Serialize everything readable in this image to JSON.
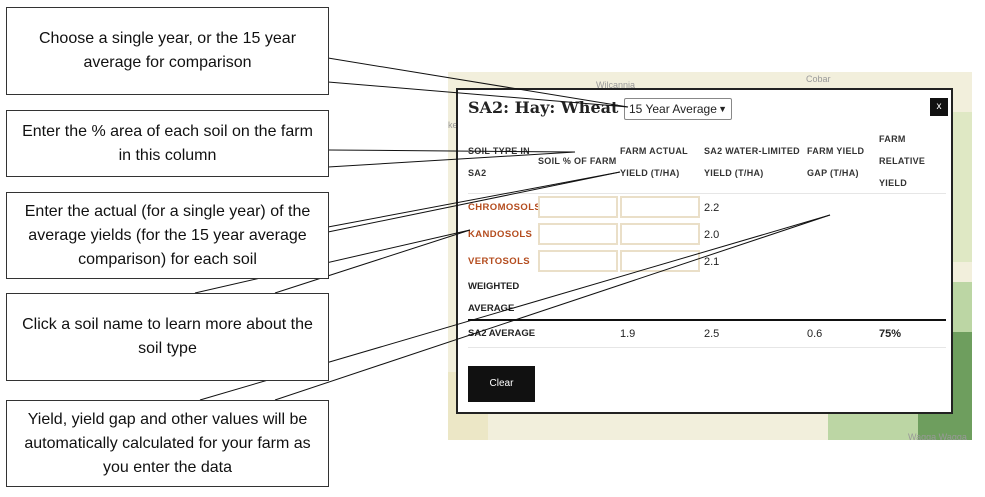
{
  "map": {
    "labels": [
      "Wilcannia",
      "Cobar",
      "ke",
      "Wagga Wagga"
    ]
  },
  "modal": {
    "title": "SA2: Hay: Wheat",
    "period_select": "15 Year Average",
    "close_label": "x",
    "columns": {
      "soil_type": "SOIL TYPE IN SA2",
      "soil_pct": "SOIL % OF FARM",
      "farm_actual": "FARM ACTUAL YIELD (T/HA)",
      "water_limited": "SA2 WATER-LIMITED YIELD (T/HA)",
      "yield_gap": "FARM YIELD GAP (T/HA)",
      "relative_yield": "FARM RELATIVE YIELD"
    },
    "rows": [
      {
        "soil": "CHROMOSOLS",
        "water_limited": "2.2"
      },
      {
        "soil": "KANDOSOLS",
        "water_limited": "2.0"
      },
      {
        "soil": "VERTOSOLS",
        "water_limited": "2.1"
      }
    ],
    "weighted_label": "WEIGHTED AVERAGE",
    "sa2_average": {
      "label": "SA2 AVERAGE",
      "farm_actual": "1.9",
      "water_limited": "2.5",
      "yield_gap": "0.6",
      "relative_yield": "75%"
    },
    "clear_label": "Clear"
  },
  "callouts": [
    "Choose a single year, or the 15 year average for comparison",
    "Enter the % area of each soil on the farm in this column",
    "Enter the actual (for a single year) of the average yields (for the 15 year average comparison) for each soil",
    "Click a soil name to learn more about the soil type",
    "Yield, yield gap and other values will be automatically calculated for your farm as you enter the data"
  ]
}
